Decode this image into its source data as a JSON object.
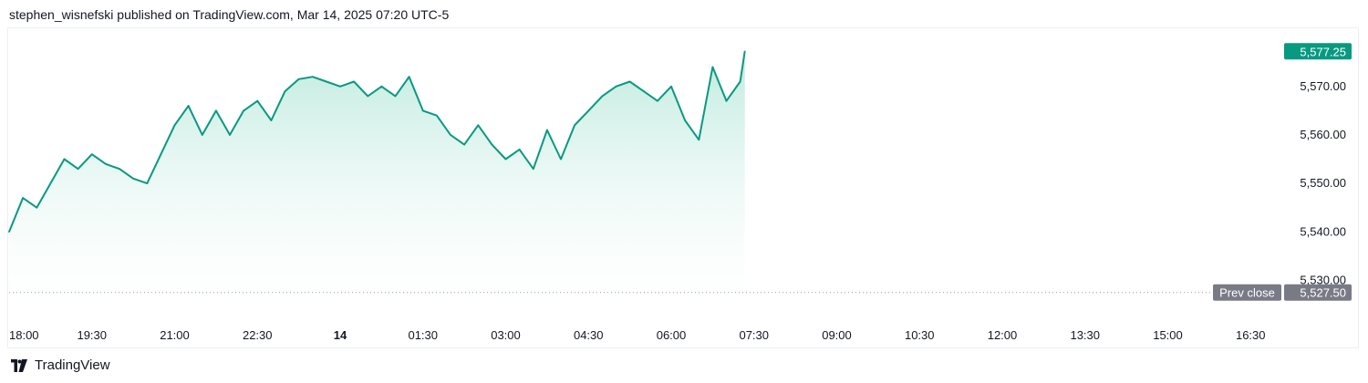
{
  "header": {
    "attribution": "stephen_wisnefski published on TradingView.com, Mar 14, 2025 07:20 UTC-5"
  },
  "footer": {
    "brand": "TradingView",
    "logo_icon": "tradingview-logo-icon"
  },
  "colors": {
    "line": "#089981",
    "fill_top": "#b3e6d9",
    "last_price_badge": "#089981",
    "prev_close_badge": "#787b86",
    "prev_close_line": "#9598a1"
  },
  "chart_data": {
    "type": "area",
    "y_axis_side": "right",
    "ylim": [
      5525.0,
      5582.0
    ],
    "y_ticks": [
      "5,530.00",
      "5,540.00",
      "5,550.00",
      "5,560.00",
      "5,570.00"
    ],
    "x_ticks": [
      {
        "label": "18:00",
        "bold": false
      },
      {
        "label": "19:30",
        "bold": false
      },
      {
        "label": "21:00",
        "bold": false
      },
      {
        "label": "22:30",
        "bold": false
      },
      {
        "label": "14",
        "bold": true
      },
      {
        "label": "01:30",
        "bold": false
      },
      {
        "label": "03:00",
        "bold": false
      },
      {
        "label": "04:30",
        "bold": false
      },
      {
        "label": "06:00",
        "bold": false
      },
      {
        "label": "07:30",
        "bold": false
      },
      {
        "label": "09:00",
        "bold": false
      },
      {
        "label": "10:30",
        "bold": false
      },
      {
        "label": "12:00",
        "bold": false
      },
      {
        "label": "13:30",
        "bold": false
      },
      {
        "label": "15:00",
        "bold": false
      },
      {
        "label": "16:30",
        "bold": false
      }
    ],
    "last_price": {
      "value": 5577.25,
      "label": "5,577.25"
    },
    "prev_close": {
      "value": 5527.5,
      "label": "5,527.50",
      "caption": "Prev close"
    },
    "series": [
      {
        "x": [
          "18:00",
          "18:15",
          "18:30",
          "18:45",
          "19:00",
          "19:15",
          "19:30",
          "19:45",
          "20:00",
          "20:15",
          "20:30",
          "20:45",
          "21:00",
          "21:15",
          "21:30",
          "21:45",
          "22:00",
          "22:15",
          "22:30",
          "22:45",
          "23:00",
          "23:15",
          "23:30",
          "23:45",
          "00:00",
          "00:15",
          "00:30",
          "00:45",
          "01:00",
          "01:15",
          "01:30",
          "01:45",
          "02:00",
          "02:15",
          "02:30",
          "02:45",
          "03:00",
          "03:15",
          "03:30",
          "03:45",
          "04:00",
          "04:15",
          "04:30",
          "04:45",
          "05:00",
          "05:15",
          "05:30",
          "05:45",
          "06:00",
          "06:15",
          "06:30",
          "06:45",
          "07:00",
          "07:15",
          "07:20"
        ],
        "y": [
          5540.0,
          5547.0,
          5545.0,
          5550.0,
          5555.0,
          5553.0,
          5556.0,
          5554.0,
          5553.0,
          5551.0,
          5550.0,
          5556.0,
          5562.0,
          5566.0,
          5560.0,
          5565.0,
          5560.0,
          5565.0,
          5567.0,
          5563.0,
          5569.0,
          5571.5,
          5572.0,
          5571.0,
          5570.0,
          5571.0,
          5568.0,
          5570.0,
          5568.0,
          5572.0,
          5565.0,
          5564.0,
          5560.0,
          5558.0,
          5562.0,
          5558.0,
          5555.0,
          5557.0,
          5553.0,
          5561.0,
          5555.0,
          5562.0,
          5565.0,
          5568.0,
          5570.0,
          5571.0,
          5569.0,
          5567.0,
          5570.0,
          5563.0,
          5559.0,
          5574.0,
          5567.0,
          5571.0,
          5577.25
        ]
      }
    ]
  }
}
